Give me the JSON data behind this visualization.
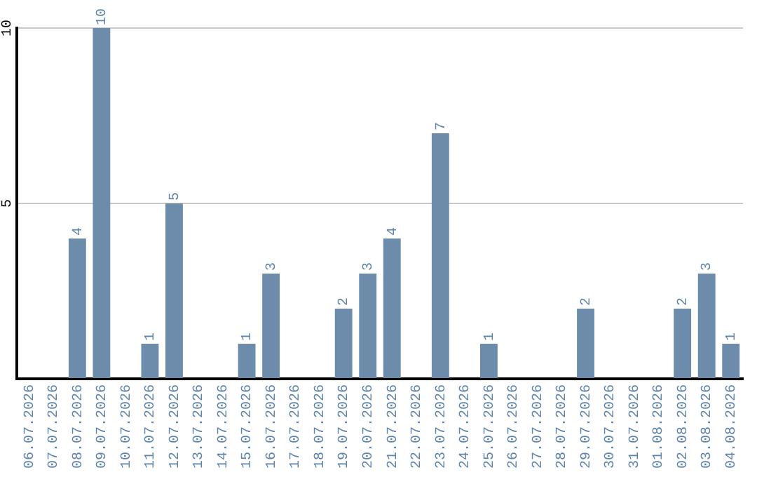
{
  "chart_data": {
    "type": "bar",
    "categories": [
      "06.07.2026",
      "07.07.2026",
      "08.07.2026",
      "09.07.2026",
      "10.07.2026",
      "11.07.2026",
      "12.07.2026",
      "13.07.2026",
      "14.07.2026",
      "15.07.2026",
      "16.07.2026",
      "17.07.2026",
      "18.07.2026",
      "19.07.2026",
      "20.07.2026",
      "21.07.2026",
      "22.07.2026",
      "23.07.2026",
      "24.07.2026",
      "25.07.2026",
      "26.07.2026",
      "27.07.2026",
      "28.07.2026",
      "29.07.2026",
      "30.07.2026",
      "31.07.2026",
      "01.08.2026",
      "02.08.2026",
      "03.08.2026",
      "04.08.2026"
    ],
    "values": [
      0,
      0,
      4,
      10,
      0,
      1,
      5,
      0,
      0,
      1,
      3,
      0,
      0,
      2,
      3,
      4,
      0,
      7,
      0,
      1,
      0,
      0,
      0,
      2,
      0,
      0,
      0,
      2,
      3,
      1
    ],
    "value_labels": [
      null,
      null,
      "4",
      "10",
      null,
      "1",
      "5",
      null,
      null,
      "1",
      "3",
      null,
      null,
      "2",
      "3",
      "4",
      null,
      "7",
      null,
      "1",
      null,
      null,
      null,
      "2",
      null,
      null,
      null,
      "2",
      "3",
      "1"
    ],
    "color": "#6d8cab",
    "ylim": [
      0,
      10
    ],
    "yticks": [
      {
        "value": 0,
        "label": null
      },
      5,
      10
    ],
    "grid": "y",
    "legend": false
  }
}
